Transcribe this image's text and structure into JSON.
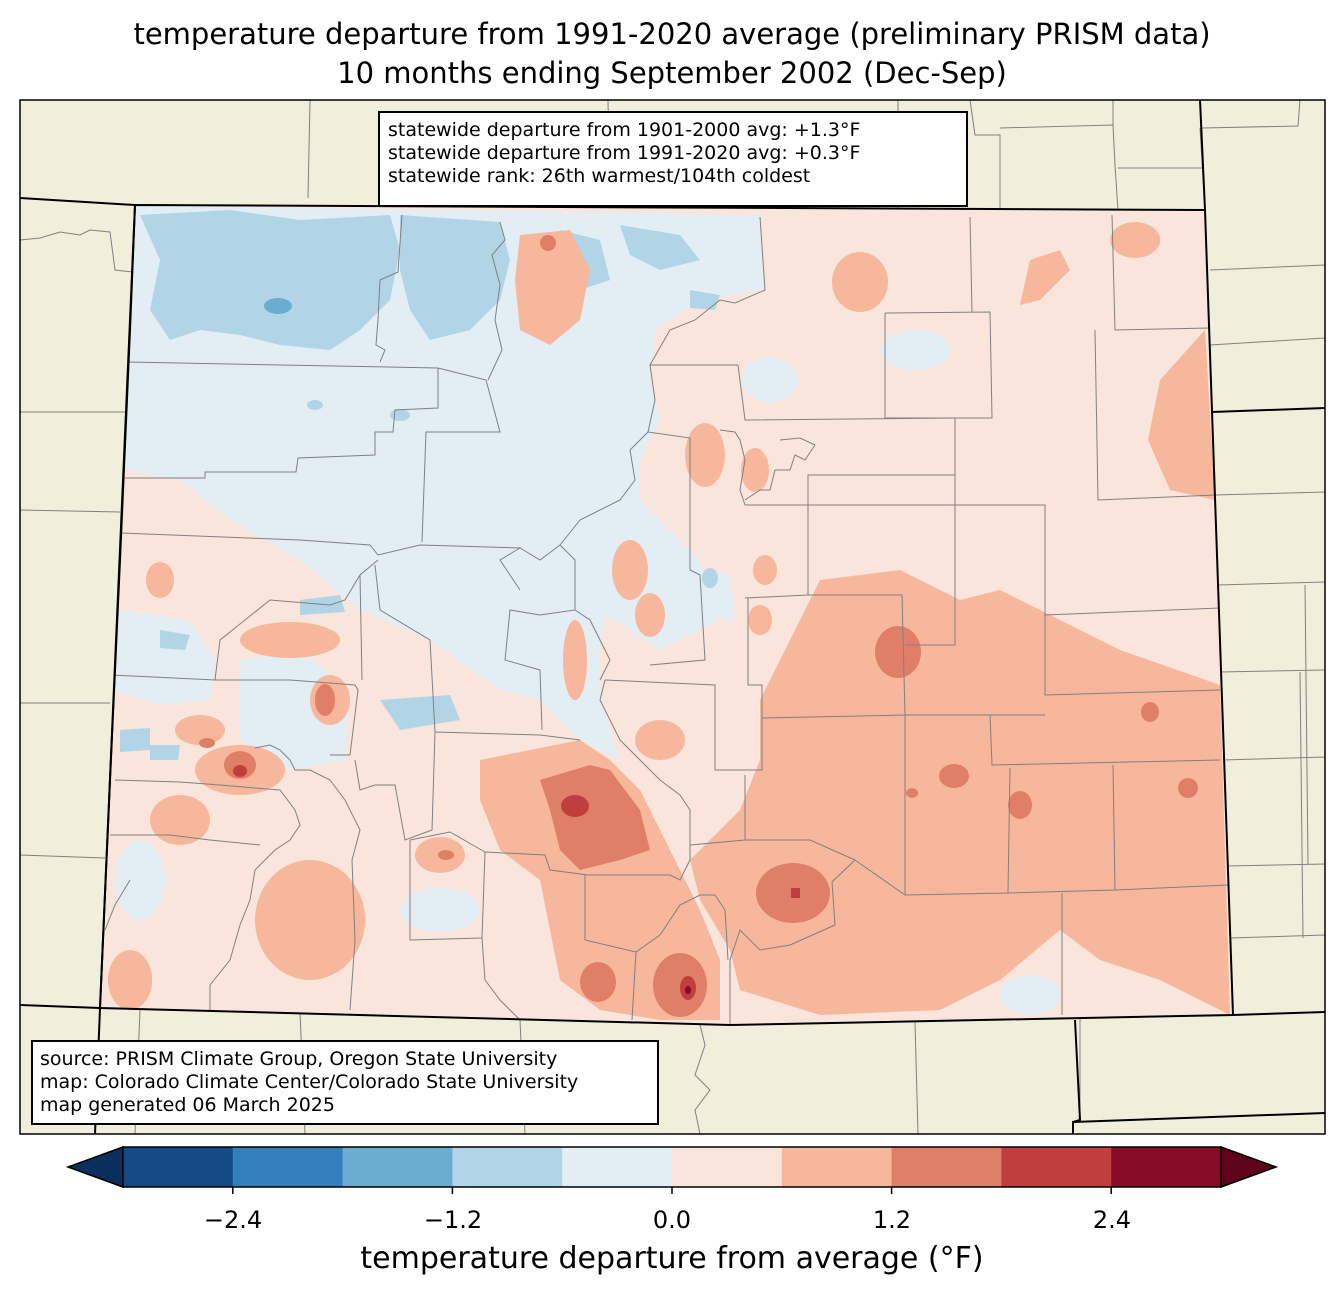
{
  "title": {
    "line1": "temperature departure from 1991-2020 average (preliminary PRISM data)",
    "line2": "10 months ending September 2002 (Dec-Sep)"
  },
  "stats": {
    "line1": "statewide departure from 1901-2000 avg: +1.3°F",
    "line2": "statewide departure from 1991-2020 avg: +0.3°F",
    "line3": "statewide rank: 26th warmest/104th coldest"
  },
  "source": {
    "line1": "source: PRISM Climate Group, Oregon State University",
    "line2": "map: Colorado Climate Center/Colorado State University",
    "line3": "map generated 06 March 2025"
  },
  "colorbar": {
    "label": "temperature departure from average (°F)",
    "ticks": [
      "−2.4",
      "−1.2",
      "0.0",
      "1.2",
      "2.4"
    ],
    "bins": [
      -3.0,
      -2.4,
      -1.8,
      -1.2,
      -0.6,
      0.0,
      0.6,
      1.2,
      1.8,
      2.4,
      3.0
    ],
    "colors": [
      "#134b87",
      "#327fbb",
      "#6bacd1",
      "#b1d5e7",
      "#e3edf4",
      "#f9e5db",
      "#f6b79c",
      "#e07f67",
      "#c13e3f",
      "#850c26"
    ],
    "under_color": "#0a2f5c",
    "over_color": "#5e0319"
  },
  "colors": {
    "land": "#efefdb",
    "state_base": "#f9e5db",
    "county_line": "#808080",
    "state_line": "#000000"
  }
}
